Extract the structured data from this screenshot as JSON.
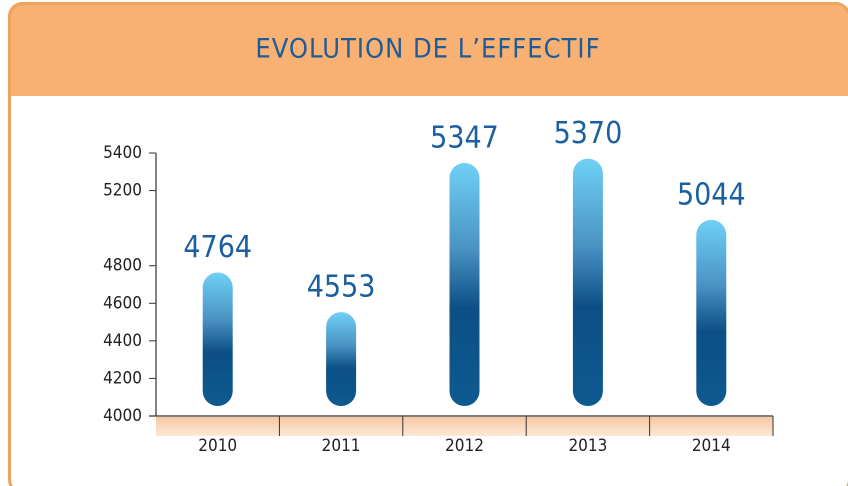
{
  "chart_data": {
    "type": "bar",
    "title": "EVOLUTION DE L’EFFECTIF",
    "categories": [
      "2010",
      "2011",
      "2012",
      "2013",
      "2014"
    ],
    "values": [
      4764,
      4553,
      5347,
      5370,
      5044
    ],
    "ylim": [
      4000,
      5400
    ],
    "yticks": [
      4000,
      4200,
      4400,
      4600,
      4800,
      5200,
      5400
    ],
    "color": "#0b4f86"
  }
}
